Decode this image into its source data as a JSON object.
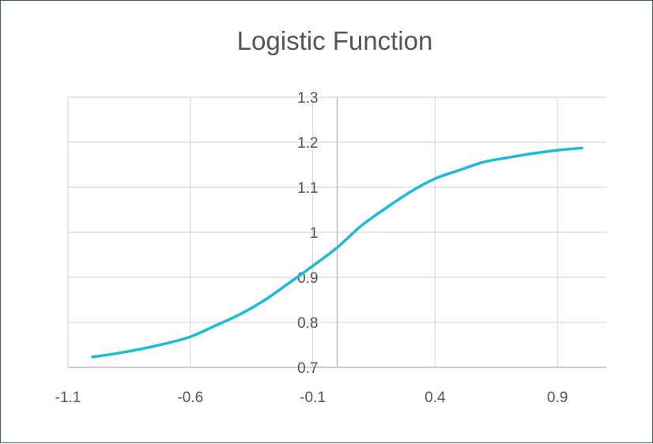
{
  "chart_data": {
    "type": "line",
    "title": "Logistic Function",
    "xlabel": "",
    "ylabel": "",
    "xlim": [
      -1.1,
      1.1
    ],
    "ylim": [
      0.7,
      1.3
    ],
    "xticks": [
      -1.1,
      -0.6,
      -0.1,
      0.4,
      0.9
    ],
    "xtick_labels": [
      "-1.1",
      "-0.6",
      "-0.1",
      "0.4",
      "0.9"
    ],
    "yticks": [
      0.7,
      0.8,
      0.9,
      1.0,
      1.1,
      1.2,
      1.3
    ],
    "ytick_labels": [
      "0.7",
      "0.8",
      "0.9",
      "1",
      "1.1",
      "1.2",
      "1.3"
    ],
    "grid": true,
    "legend": "none",
    "series": [
      {
        "color": "#1fbad6",
        "x": [
          -1.0,
          -0.9,
          -0.8,
          -0.7,
          -0.6,
          -0.5,
          -0.4,
          -0.3,
          -0.2,
          -0.1,
          0.0,
          0.1,
          0.2,
          0.3,
          0.4,
          0.5,
          0.6,
          0.7,
          0.8,
          0.9,
          1.0
        ],
        "y": [
          0.723,
          0.731,
          0.741,
          0.753,
          0.768,
          0.792,
          0.817,
          0.848,
          0.886,
          0.925,
          0.966,
          1.015,
          1.054,
          1.09,
          1.119,
          1.138,
          1.156,
          1.166,
          1.175,
          1.182,
          1.187
        ]
      }
    ]
  }
}
